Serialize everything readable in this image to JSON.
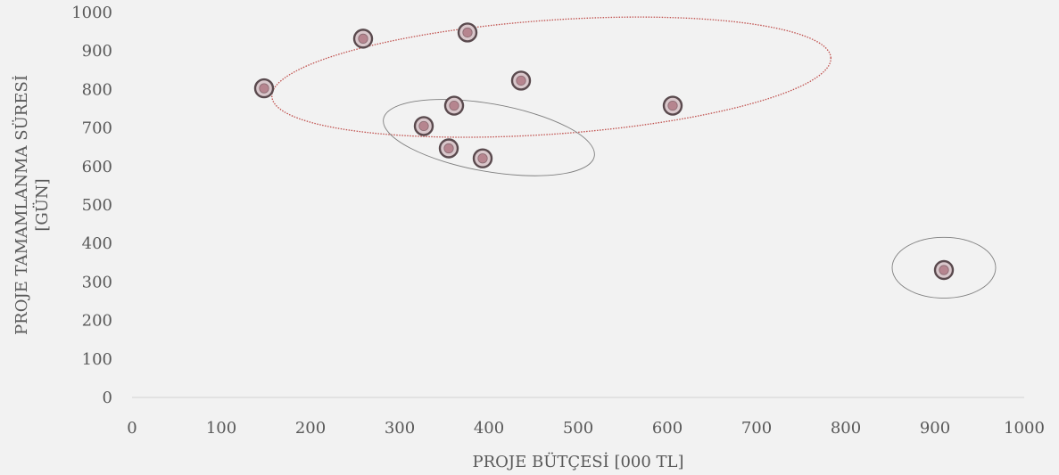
{
  "chart_data": {
    "type": "scatter",
    "xlabel": "PROJE BÜTÇESİ [000 TL]",
    "ylabel_lines": [
      "PROJE TAMAMLANMA SÜRESİ",
      "[GÜN]"
    ],
    "xlim": [
      0,
      1000
    ],
    "ylim": [
      0,
      1000
    ],
    "xticks": [
      0,
      100,
      200,
      300,
      400,
      500,
      600,
      700,
      800,
      900,
      1000
    ],
    "yticks": [
      0,
      100,
      200,
      300,
      400,
      500,
      600,
      700,
      800,
      900,
      1000
    ],
    "grid": false,
    "legend": "none",
    "points": [
      {
        "x": 148,
        "y": 803
      },
      {
        "x": 259,
        "y": 932
      },
      {
        "x": 376,
        "y": 948
      },
      {
        "x": 436,
        "y": 823
      },
      {
        "x": 361,
        "y": 758
      },
      {
        "x": 606,
        "y": 758
      },
      {
        "x": 327,
        "y": 705
      },
      {
        "x": 355,
        "y": 647
      },
      {
        "x": 393,
        "y": 621
      },
      {
        "x": 910,
        "y": 331
      }
    ],
    "groups": [
      {
        "style": "red-dotted",
        "cx": 470,
        "cy": 832,
        "rx": 314,
        "ry": 148,
        "rotate_deg": -4
      },
      {
        "style": "gray",
        "cx": 400,
        "cy": 675,
        "rx": 120,
        "ry": 88,
        "rotate_deg": 10
      },
      {
        "style": "gray",
        "cx": 910,
        "cy": 337,
        "rx": 58,
        "ry": 79,
        "rotate_deg": 0
      }
    ],
    "colors": {
      "marker_fill": "#b6858f",
      "marker_ring": "#5a4a4e",
      "axis": "#d9d9d9",
      "text": "#595959",
      "ellipse_red": "#c0504d",
      "ellipse_gray": "#7f7f7f"
    }
  }
}
